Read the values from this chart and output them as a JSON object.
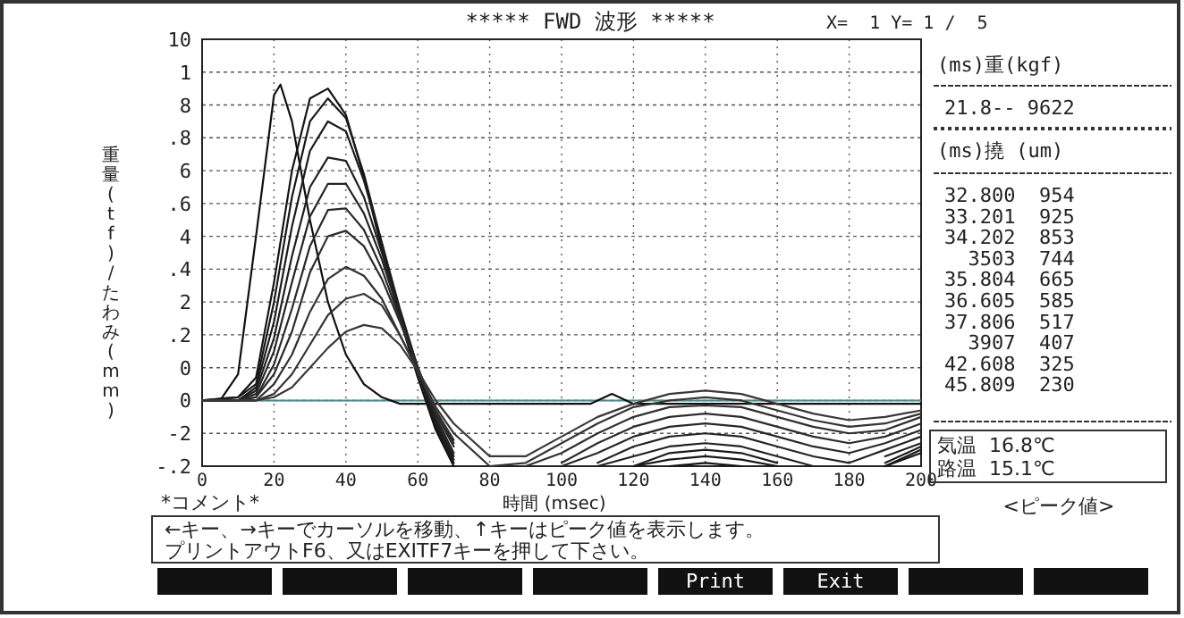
{
  "chart_data": {
    "type": "line",
    "title": "*****  FWD 波形  *****",
    "subtitle": "X=  1 Y= 1 /  5",
    "xlabel": "時間 (msec)",
    "ylabel": "重量(tf)/たわみ(mm)",
    "x": [
      0,
      10,
      15,
      20,
      25,
      30,
      35,
      40,
      45,
      50,
      55,
      60,
      65,
      70,
      80,
      90,
      100,
      110,
      120,
      130,
      140,
      150,
      160,
      170,
      180,
      190,
      200
    ],
    "xlim": [
      0,
      200
    ],
    "xticks": [
      0,
      20,
      40,
      60,
      80,
      100,
      120,
      140,
      160,
      180,
      200
    ],
    "ylim": [
      -0.2,
      1.1
    ],
    "yticks": [
      {
        "value": -0.2,
        "label": "-.2"
      },
      {
        "value": -0.1,
        "label": null
      },
      0,
      {
        "value": 0.1,
        "label": null
      },
      {
        "value": 0.2,
        "label": ".2"
      },
      {
        "value": 0.3,
        "label": null
      },
      {
        "value": 0.4,
        "label": ".4"
      },
      {
        "value": 0.5,
        "label": null
      },
      {
        "value": 0.6,
        "label": ".6"
      },
      {
        "value": 0.7,
        "label": null
      },
      {
        "value": 0.8,
        "label": ".8"
      },
      {
        "value": 0.9,
        "label": null
      },
      1
    ],
    "y2lim": [
      -3,
      10
    ],
    "y2ticks": [
      -2,
      0,
      2,
      4,
      6,
      8,
      10
    ],
    "grid": true,
    "ref_lines": [
      {
        "axis": "y",
        "value": 0,
        "color": "#4a8a8a"
      }
    ],
    "series": [
      {
        "color": "#101010",
        "x": [
          0,
          5,
          10,
          15,
          20,
          21.8,
          25,
          30,
          35,
          40,
          45,
          50,
          55,
          60,
          100,
          108,
          114,
          120,
          200
        ],
        "values": [
          0,
          0,
          0.08,
          0.5,
          0.93,
          0.962,
          0.85,
          0.55,
          0.3,
          0.14,
          0.05,
          0.01,
          -0.01,
          -0.01,
          -0.01,
          -0.01,
          0.02,
          -0.01,
          -0.01
        ]
      },
      {
        "color": "#141414",
        "values": [
          0,
          0.01,
          0.07,
          0.36,
          0.7,
          0.92,
          0.95,
          0.87,
          0.68,
          0.46,
          0.25,
          0.07,
          -0.09,
          -0.2,
          null,
          null,
          null,
          null,
          null,
          -0.2,
          -0.19,
          -0.2,
          null,
          null,
          null,
          -0.2,
          -0.16
        ]
      },
      {
        "color": "#181818",
        "values": [
          0,
          0.01,
          0.05,
          0.3,
          0.62,
          0.85,
          0.92,
          0.86,
          0.69,
          0.48,
          0.27,
          0.09,
          -0.08,
          -0.19,
          null,
          null,
          null,
          null,
          -0.2,
          -0.18,
          -0.17,
          -0.18,
          -0.2,
          null,
          null,
          -0.2,
          -0.15
        ]
      },
      {
        "color": "#1c1c1c",
        "values": [
          0,
          0,
          0.04,
          0.24,
          0.53,
          0.76,
          0.85,
          0.82,
          0.67,
          0.48,
          0.28,
          0.1,
          -0.07,
          -0.18,
          null,
          null,
          null,
          null,
          -0.2,
          -0.16,
          -0.15,
          -0.16,
          -0.19,
          null,
          null,
          -0.19,
          -0.14
        ]
      },
      {
        "color": "#202020",
        "values": [
          0,
          0,
          0.03,
          0.19,
          0.44,
          0.65,
          0.74,
          0.73,
          0.62,
          0.45,
          0.27,
          0.1,
          -0.06,
          -0.17,
          null,
          null,
          null,
          -0.2,
          -0.17,
          -0.14,
          -0.13,
          -0.14,
          -0.17,
          -0.2,
          null,
          -0.17,
          -0.13
        ]
      },
      {
        "color": "#242424",
        "values": [
          0,
          0,
          0.02,
          0.15,
          0.36,
          0.56,
          0.66,
          0.66,
          0.57,
          0.43,
          0.26,
          0.1,
          -0.05,
          -0.16,
          null,
          null,
          null,
          -0.19,
          -0.14,
          -0.11,
          -0.1,
          -0.11,
          -0.14,
          -0.17,
          -0.19,
          -0.15,
          -0.11
        ]
      },
      {
        "color": "#282828",
        "values": [
          0,
          0,
          0.01,
          0.11,
          0.28,
          0.47,
          0.58,
          0.585,
          0.52,
          0.4,
          0.25,
          0.1,
          -0.04,
          -0.14,
          null,
          null,
          -0.2,
          -0.16,
          -0.11,
          -0.08,
          -0.07,
          -0.08,
          -0.11,
          -0.14,
          -0.16,
          -0.13,
          -0.09
        ]
      },
      {
        "color": "#2c2c2c",
        "values": [
          0,
          0,
          0.01,
          0.08,
          0.21,
          0.39,
          0.5,
          0.517,
          0.47,
          0.37,
          0.24,
          0.1,
          -0.03,
          -0.13,
          null,
          null,
          -0.19,
          -0.13,
          -0.08,
          -0.05,
          -0.04,
          -0.05,
          -0.08,
          -0.11,
          -0.13,
          -0.11,
          -0.07
        ]
      },
      {
        "color": "#303030",
        "values": [
          0,
          0,
          0,
          0.05,
          0.14,
          0.27,
          0.37,
          0.407,
          0.38,
          0.31,
          0.2,
          0.09,
          -0.03,
          -0.12,
          null,
          -0.2,
          -0.16,
          -0.1,
          -0.05,
          -0.02,
          -0.015,
          -0.02,
          -0.05,
          -0.08,
          -0.1,
          -0.09,
          -0.05
        ]
      },
      {
        "color": "#343434",
        "values": [
          0,
          0,
          0,
          0.02,
          0.08,
          0.17,
          0.26,
          0.31,
          0.325,
          0.29,
          0.2,
          0.09,
          -0.02,
          -0.1,
          -0.2,
          -0.19,
          -0.13,
          -0.07,
          -0.02,
          0,
          0.01,
          0,
          -0.03,
          -0.06,
          -0.08,
          -0.07,
          -0.04
        ]
      },
      {
        "color": "#383838",
        "values": [
          0,
          0,
          0,
          0.01,
          0.04,
          0.1,
          0.16,
          0.21,
          0.23,
          0.22,
          0.17,
          0.09,
          0,
          -0.07,
          -0.17,
          -0.17,
          -0.11,
          -0.05,
          -0.01,
          0.02,
          0.03,
          0.02,
          -0.01,
          -0.04,
          -0.06,
          -0.05,
          -0.03
        ]
      }
    ],
    "annotations": [
      "(ms)重(kgf)",
      "21.8-- 9622",
      "(ms)撓 (um)",
      "32.800  954",
      "33.201  925",
      "34.202  853",
      "  3503  744",
      "35.804  665",
      "36.605  585",
      "37.806  517",
      "  3907  407",
      "42.608  325",
      "45.809  230",
      "気温  16.8℃",
      "路温  15.1℃",
      "<ピーク値>",
      "*コメント*",
      "←キー、→キーでカーソルを移動、↑キーはピーク値を表示します。",
      "プリントアウトF6、又はEXITF7キーを押して下さい。",
      "Print",
      "Exit"
    ]
  }
}
